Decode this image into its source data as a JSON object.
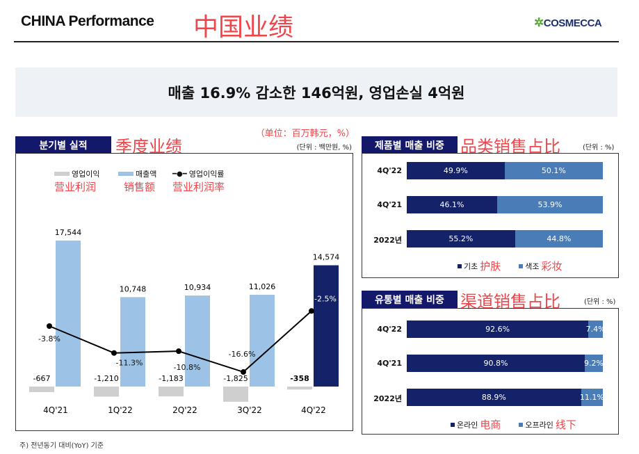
{
  "header": {
    "title": "CHINA Performance",
    "title_cn": "中国业绩",
    "logo": "COSMECCA"
  },
  "banner": "매출 16.9% 감소한 146억원, 영업손실 4억원",
  "quarterly": {
    "tab": "분기별 실적",
    "tab_cn": "季度业绩",
    "unit_cn": "（单位：百万韩元，%）",
    "unit": "(단위 : 백만원, %)",
    "legend": [
      {
        "label": "영업이익",
        "cn": "营业利润",
        "color": "#cfcfcf"
      },
      {
        "label": "매출액",
        "cn": "销售额",
        "color": "#9cc3e6"
      },
      {
        "label": "영업이익률",
        "cn": "营业利润率",
        "color": "#000000"
      }
    ]
  },
  "chart_data": {
    "type": "bar",
    "categories": [
      "4Q'21",
      "1Q'22",
      "2Q'22",
      "3Q'22",
      "4Q'22"
    ],
    "series": [
      {
        "name": "매출액",
        "values": [
          17544,
          10748,
          10934,
          11026,
          14574
        ],
        "labels": [
          "17,544",
          "10,748",
          "10,934",
          "11,026",
          "14,574"
        ]
      },
      {
        "name": "영업이익",
        "values": [
          -667,
          -1210,
          -1183,
          -1825,
          -358
        ],
        "labels": [
          "-667",
          "-1,210",
          "-1,183",
          "-1,825",
          "-358"
        ]
      },
      {
        "name": "영업이익률",
        "type": "line",
        "values": [
          -3.8,
          -11.3,
          -10.8,
          -16.6,
          -2.5
        ],
        "labels": [
          "-3.8%",
          "-11.3%",
          "-10.8%",
          "-16.6%",
          "-2.5%"
        ]
      }
    ],
    "highlight_color": "#14226a"
  },
  "product": {
    "tab": "제품별 매출 비중",
    "tab_cn": "品类销售占比",
    "unit": "(단위 : %)",
    "rows": [
      {
        "label": "4Q'22",
        "a": 49.9,
        "a_label": "49.9%",
        "b": 50.1,
        "b_label": "50.1%"
      },
      {
        "label": "4Q'21",
        "a": 46.1,
        "a_label": "46.1%",
        "b": 53.9,
        "b_label": "53.9%"
      },
      {
        "label": "2022년",
        "a": 55.2,
        "a_label": "55.2%",
        "b": 44.8,
        "b_label": "44.8%"
      }
    ],
    "legend_a": "기초",
    "legend_a_cn": "护肤",
    "legend_b": "색조",
    "legend_b_cn": "彩妆"
  },
  "channel": {
    "tab": "유통별 매출 비중",
    "tab_cn": "渠道销售占比",
    "unit": "(단위 : %)",
    "rows": [
      {
        "label": "4Q'22",
        "a": 92.6,
        "a_label": "92.6%",
        "b": 7.4,
        "b_label": "7.4%"
      },
      {
        "label": "4Q'21",
        "a": 90.8,
        "a_label": "90.8%",
        "b": 9.2,
        "b_label": "9.2%"
      },
      {
        "label": "2022년",
        "a": 88.9,
        "a_label": "88.9%",
        "b": 11.1,
        "b_label": "11.1%"
      }
    ],
    "legend_a": "온라인",
    "legend_a_cn": "电商",
    "legend_b": "오프라인",
    "legend_b_cn": "线下"
  },
  "footnote": "주) 전년동기 대비(YoY) 기준"
}
